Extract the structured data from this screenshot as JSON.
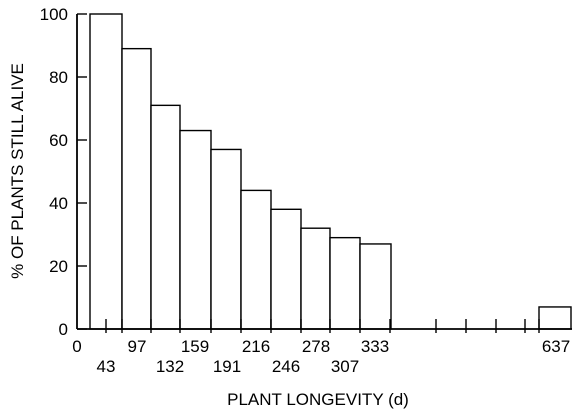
{
  "chart_data": {
    "type": "bar",
    "title": "",
    "xlabel": "PLANT LONGEVITY (d)",
    "ylabel": "% OF PLANTS STILL ALIVE",
    "ylim": [
      0,
      100
    ],
    "yticks": [
      0,
      20,
      40,
      60,
      80,
      100
    ],
    "xticks_top_row": [
      "0",
      "97",
      "159",
      "216",
      "278",
      "333",
      "637"
    ],
    "xticks_bottom_row": [
      "43",
      "132",
      "191",
      "246",
      "307"
    ],
    "categories": [
      "43",
      "97",
      "132",
      "159",
      "191",
      "216",
      "246",
      "278",
      "307",
      "333",
      "637"
    ],
    "values": [
      100,
      89,
      71,
      63,
      57,
      44,
      38,
      32,
      29,
      27,
      7
    ],
    "grid": false,
    "legend": "none"
  }
}
